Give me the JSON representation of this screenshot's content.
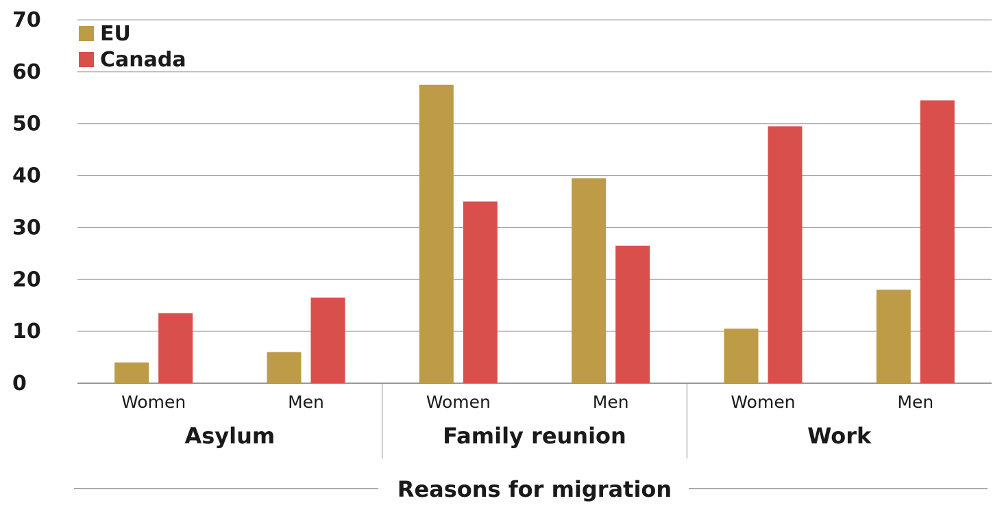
{
  "chart_data": {
    "type": "bar",
    "xlabel": "Reasons for migration",
    "ylabel": "",
    "ylim": [
      0,
      70
    ],
    "yticks": [
      0,
      10,
      20,
      30,
      40,
      50,
      60,
      70
    ],
    "grid": true,
    "legend_position": "top-left",
    "groups": [
      "Asylum",
      "Family reunion",
      "Work"
    ],
    "categories": [
      "Women",
      "Men",
      "Women",
      "Men",
      "Women",
      "Men"
    ],
    "series": [
      {
        "name": "EU",
        "color": "#bd9b47",
        "values": [
          4,
          6,
          57.5,
          39.5,
          10.5,
          18
        ]
      },
      {
        "name": "Canada",
        "color": "#d94f4c",
        "values": [
          13.5,
          16.5,
          35,
          26.5,
          49.5,
          54.5
        ]
      }
    ]
  }
}
